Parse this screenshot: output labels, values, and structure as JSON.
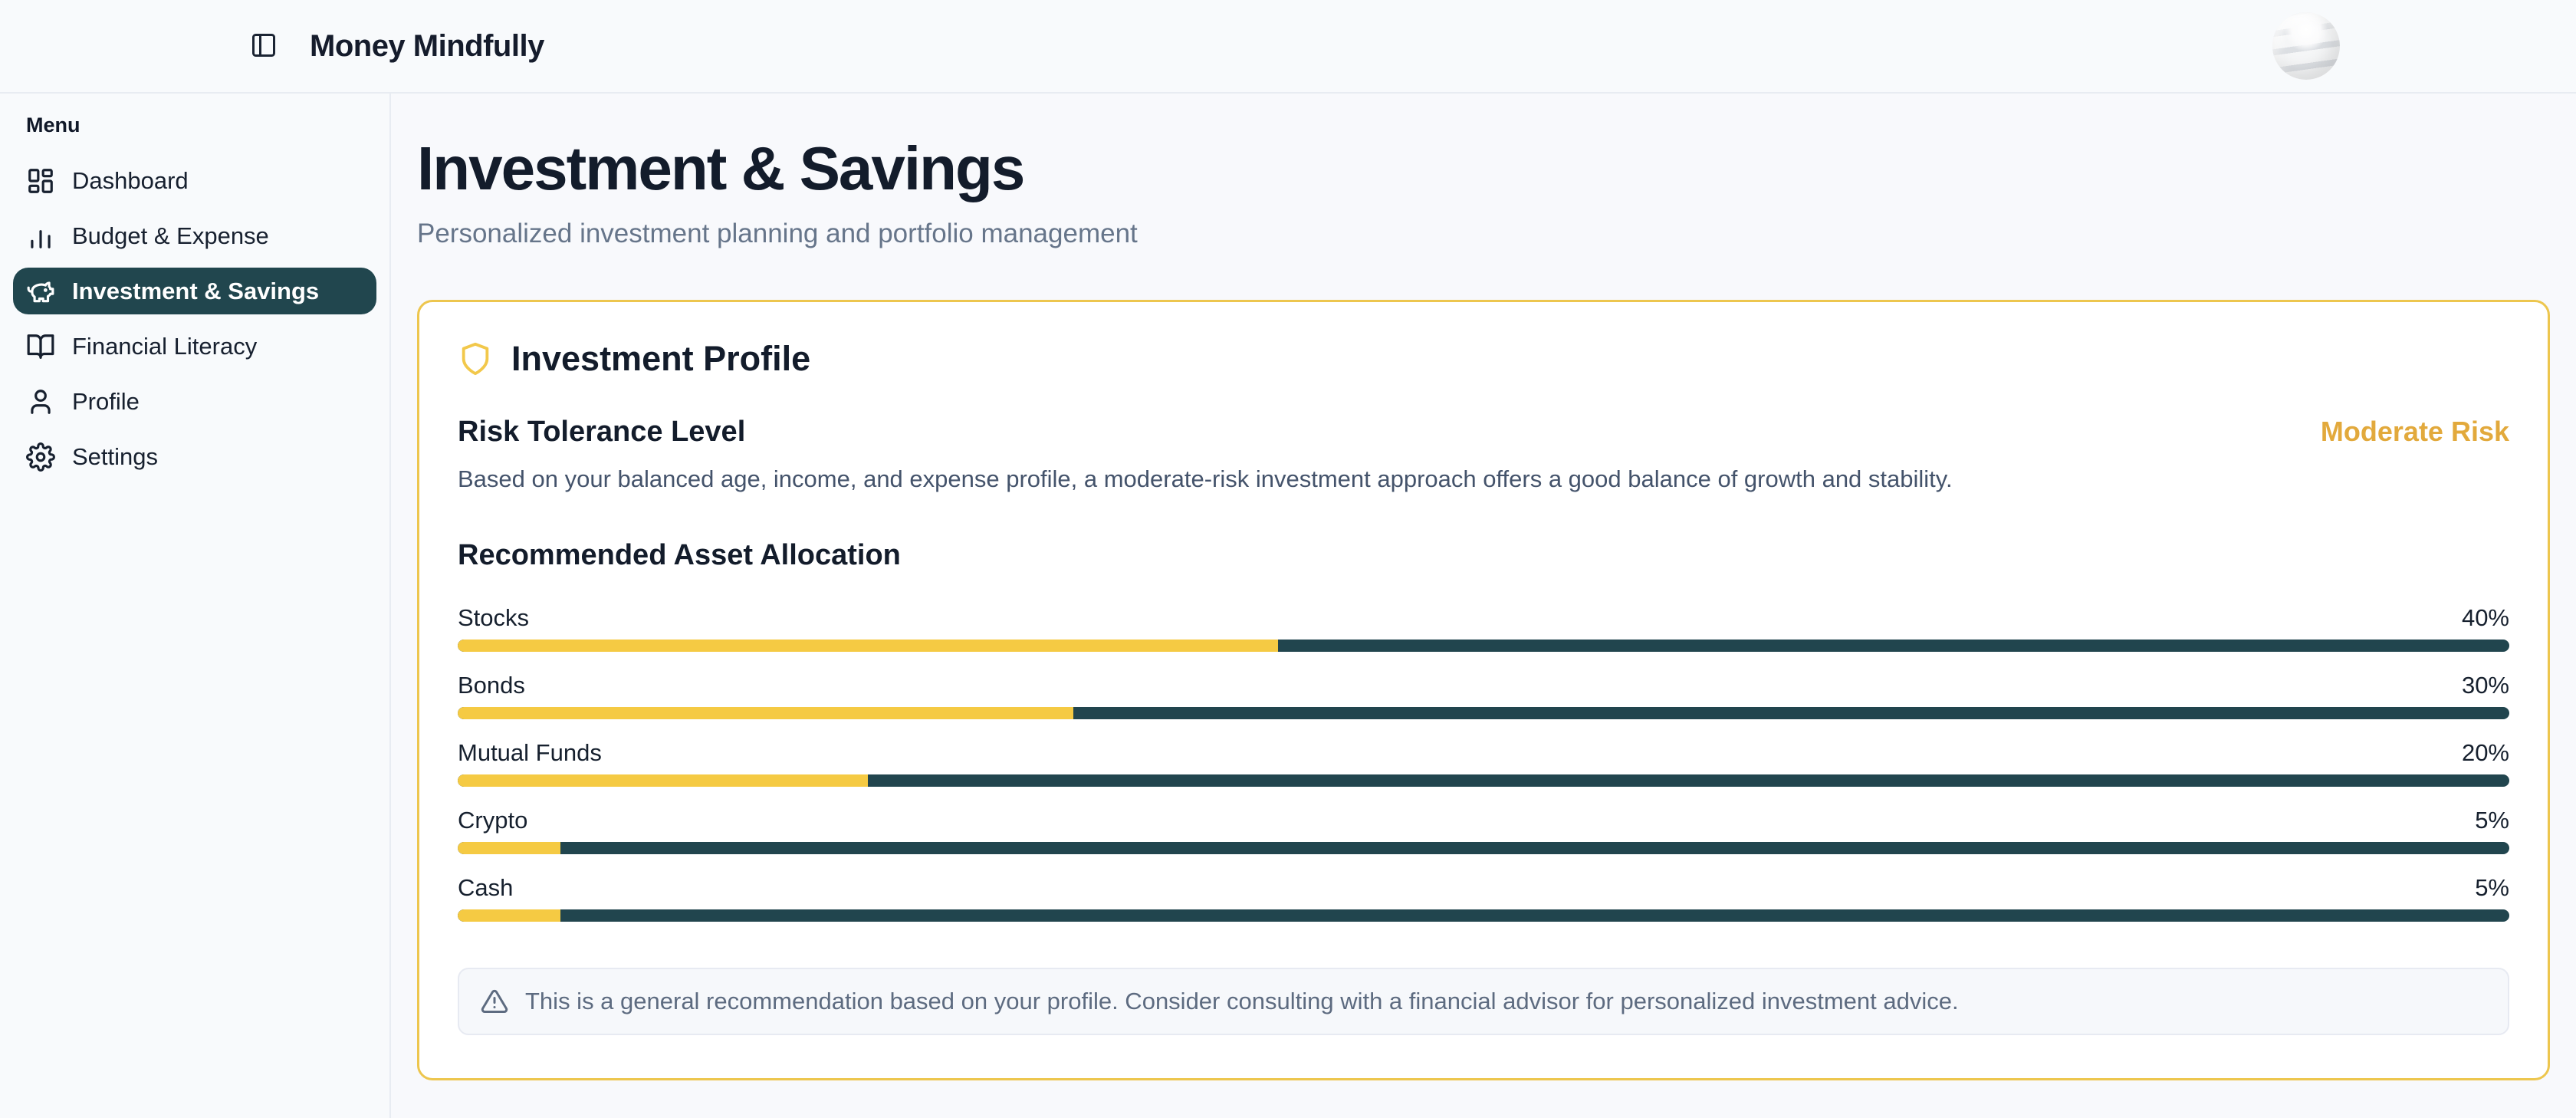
{
  "header": {
    "app_title": "Money Mindfully"
  },
  "sidebar": {
    "menu_label": "Menu",
    "items": [
      {
        "id": "dashboard",
        "label": "Dashboard",
        "icon": "dashboard-icon",
        "active": false
      },
      {
        "id": "budget-expense",
        "label": "Budget & Expense",
        "icon": "bar-chart-icon",
        "active": false
      },
      {
        "id": "investment-savings",
        "label": "Investment & Savings",
        "icon": "piggy-bank-icon",
        "active": true
      },
      {
        "id": "financial-literacy",
        "label": "Financial Literacy",
        "icon": "book-open-icon",
        "active": false
      },
      {
        "id": "profile",
        "label": "Profile",
        "icon": "user-icon",
        "active": false
      },
      {
        "id": "settings",
        "label": "Settings",
        "icon": "gear-icon",
        "active": false
      }
    ]
  },
  "page": {
    "title": "Investment & Savings",
    "subtitle": "Personalized investment planning and portfolio management"
  },
  "profile_card": {
    "title": "Investment Profile",
    "risk_heading": "Risk Tolerance Level",
    "risk_level": "Moderate Risk",
    "risk_description": "Based on your balanced age, income, and expense profile, a moderate-risk investment approach offers a good balance of growth and stability.",
    "allocation_heading": "Recommended Asset Allocation",
    "allocation": [
      {
        "label": "Stocks",
        "percent": 40,
        "display": "40%"
      },
      {
        "label": "Bonds",
        "percent": 30,
        "display": "30%"
      },
      {
        "label": "Mutual Funds",
        "percent": 20,
        "display": "20%"
      },
      {
        "label": "Crypto",
        "percent": 5,
        "display": "5%"
      },
      {
        "label": "Cash",
        "percent": 5,
        "display": "5%"
      }
    ],
    "note": "This is a general recommendation based on your profile. Consider consulting with a financial advisor for personalized investment advice."
  },
  "colors": {
    "accent_yellow": "#f5ca43",
    "card_border": "#edc64e",
    "risk_level_text": "#e2a93c",
    "bar_track_teal": "#21454e",
    "active_item_bg": "#21464e",
    "heading_text": "#131c2b",
    "muted_text": "#64748b"
  }
}
